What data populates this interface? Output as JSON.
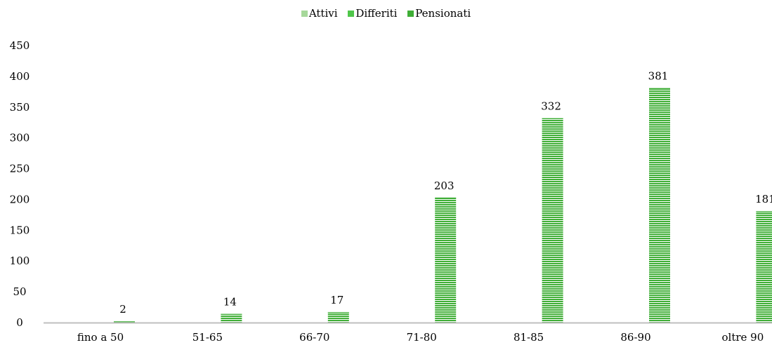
{
  "chart_data": {
    "type": "bar",
    "categories": [
      "fino a 50",
      "51-65",
      "66-70",
      "71-80",
      "81-85",
      "86-90",
      "oltre 90"
    ],
    "series": [
      {
        "name": "Attivi",
        "values": [
          0,
          0,
          0,
          0,
          0,
          0,
          0
        ],
        "color": "#a6d89a"
      },
      {
        "name": "Differiti",
        "values": [
          0,
          0,
          0,
          0,
          0,
          0,
          0
        ],
        "color": "#4fc64a"
      },
      {
        "name": "Pensionati",
        "values": [
          2,
          14,
          17,
          203,
          332,
          381,
          181
        ],
        "color": "#3fae36"
      }
    ],
    "data_labels": [
      "2",
      "14",
      "17",
      "203",
      "332",
      "381",
      "181"
    ],
    "ylim": [
      0,
      450
    ],
    "yticks": [
      0,
      50,
      100,
      150,
      200,
      250,
      300,
      350,
      400,
      450
    ],
    "legend_position": "top-center",
    "grid": false,
    "axis_color": "#bfbfbf"
  }
}
